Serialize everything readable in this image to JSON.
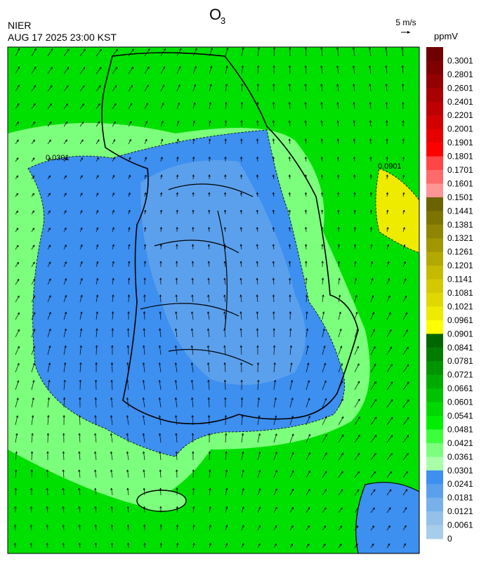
{
  "header": {
    "title": {
      "main": "O",
      "sub": "3"
    },
    "source": "NIER",
    "timestamp": "AUG 17 2025 23:00 KST",
    "vector_scale": "5 m/s"
  },
  "colorbar": {
    "unit": "ppmV",
    "labels": [
      "0.3001",
      "0.2801",
      "0.2601",
      "0.2401",
      "0.2201",
      "0.2001",
      "0.1901",
      "0.1801",
      "0.1701",
      "0.1601",
      "0.1501",
      "0.1441",
      "0.1381",
      "0.1321",
      "0.1261",
      "0.1201",
      "0.1141",
      "0.1081",
      "0.1021",
      "0.0961",
      "0.0901",
      "0.0841",
      "0.0781",
      "0.0721",
      "0.0661",
      "0.0601",
      "0.0541",
      "0.0481",
      "0.0421",
      "0.0361",
      "0.0301",
      "0.0241",
      "0.0181",
      "0.0121",
      "0.0061",
      "0"
    ],
    "colors": [
      "#6e0000",
      "#7f0000",
      "#930000",
      "#a80000",
      "#bd0000",
      "#d20000",
      "#e80000",
      "#ff0000",
      "#ff4545",
      "#ff6b6b",
      "#ff9595",
      "#6b6300",
      "#7d7400",
      "#8f8500",
      "#a19700",
      "#b3a800",
      "#c5ba00",
      "#d4c900",
      "#e0d800",
      "#eeea00",
      "#ffff00",
      "#006600",
      "#007d00",
      "#009400",
      "#00ab00",
      "#00c200",
      "#00d800",
      "#00ee00",
      "#3cff3c",
      "#7cff7c",
      "#a8ffa8",
      "#3d8ff0",
      "#5ba0ec",
      "#78b1ea",
      "#94c1ea",
      "#a8cdea"
    ]
  },
  "map": {
    "contour_labels": [
      "0.0301",
      "0.0901"
    ]
  }
}
